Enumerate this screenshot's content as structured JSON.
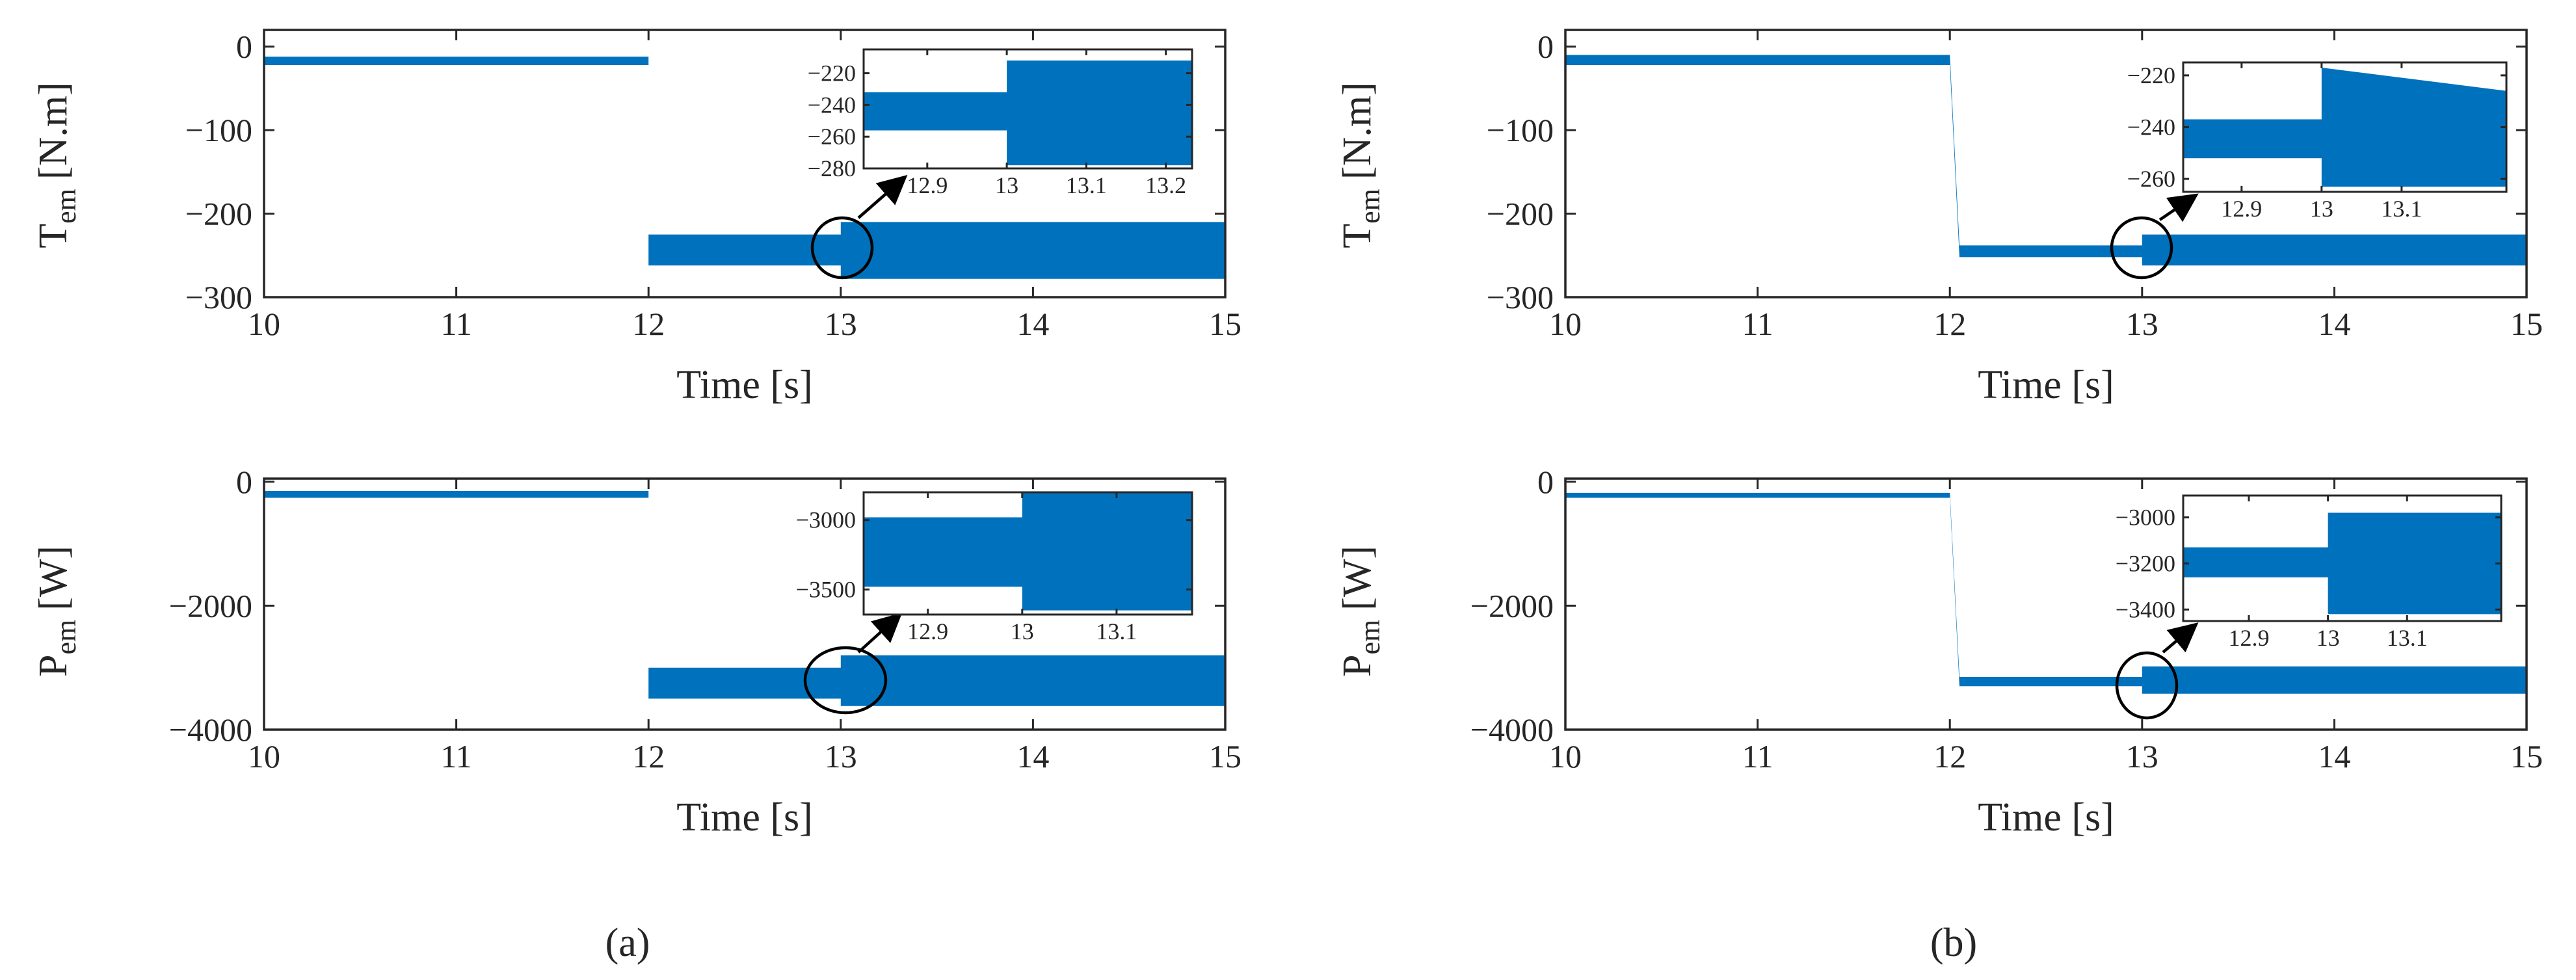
{
  "chart_data": [
    {
      "type": "band",
      "color": "#0072BD",
      "xlabel": "Time [s]",
      "ylabel": {
        "symbol": "T",
        "subscript": "em",
        "unit": "[N.m]"
      },
      "x": [
        10,
        12,
        12,
        13,
        13,
        15
      ],
      "upper": [
        -12,
        -12,
        -225,
        -225,
        -210,
        -210
      ],
      "lower": [
        -22,
        -22,
        -262,
        -262,
        -278,
        -278
      ],
      "xlim": [
        10,
        15
      ],
      "xticks": [
        10,
        11,
        12,
        13,
        14,
        15
      ],
      "ylim": [
        -300,
        20
      ],
      "yticks": [
        {
          "value": -300,
          "label": "−300"
        },
        {
          "value": -200,
          "label": "−200"
        },
        {
          "value": -100,
          "label": "−100"
        },
        0
      ],
      "inset": {
        "x": [
          12.82,
          13,
          13,
          13.233
        ],
        "upper": [
          -232,
          -232,
          -212,
          -212
        ],
        "lower": [
          -256,
          -256,
          -278,
          -278
        ],
        "xlim": [
          12.82,
          13.233
        ],
        "xticks": [
          12.9,
          13,
          13.1,
          13.2
        ],
        "ylim": [
          -280,
          -205
        ],
        "yticks": [
          {
            "value": -280,
            "label": "−280"
          },
          {
            "value": -260,
            "label": "−260"
          },
          {
            "value": -240,
            "label": "−240"
          },
          {
            "value": -220,
            "label": "−220"
          }
        ]
      }
    },
    {
      "type": "band",
      "color": "#0072BD",
      "xlabel": "Time [s]",
      "ylabel": {
        "symbol": "P",
        "subscript": "em",
        "unit": "[W]"
      },
      "x": [
        10,
        12,
        12,
        13,
        13,
        15
      ],
      "upper": [
        -150,
        -150,
        -3000,
        -3000,
        -2800,
        -2800
      ],
      "lower": [
        -260,
        -260,
        -3500,
        -3500,
        -3620,
        -3620
      ],
      "xlim": [
        10,
        15
      ],
      "xticks": [
        10,
        11,
        12,
        13,
        14,
        15
      ],
      "ylim": [
        -4000,
        50
      ],
      "yticks": [
        {
          "value": -4000,
          "label": "−4000"
        },
        {
          "value": -2000,
          "label": "−2000"
        },
        0
      ],
      "inset": {
        "x": [
          12.832,
          13,
          13,
          13.18
        ],
        "upper": [
          -2980,
          -2980,
          -2800,
          -2800
        ],
        "lower": [
          -3480,
          -3480,
          -3650,
          -3650
        ],
        "xlim": [
          12.832,
          13.18
        ],
        "xticks": [
          12.9,
          13,
          13.1
        ],
        "ylim": [
          -3680,
          -2800
        ],
        "yticks": [
          {
            "value": -3500,
            "label": "−3500"
          },
          {
            "value": -3000,
            "label": "−3000"
          }
        ]
      }
    },
    {
      "type": "band",
      "color": "#0072BD",
      "xlabel": "Time [s]",
      "ylabel": {
        "symbol": "T",
        "subscript": "em",
        "unit": "[N.m]"
      },
      "x": [
        10,
        12,
        12.05,
        13,
        13,
        15
      ],
      "upper": [
        -10,
        -10,
        -238,
        -238,
        -225,
        -225
      ],
      "lower": [
        -22,
        -22,
        -252,
        -252,
        -262,
        -262
      ],
      "xlim": [
        10,
        15
      ],
      "xticks": [
        10,
        11,
        12,
        13,
        14,
        15
      ],
      "ylim": [
        -300,
        20
      ],
      "yticks": [
        {
          "value": -300,
          "label": "−300"
        },
        {
          "value": -200,
          "label": "−200"
        },
        {
          "value": -100,
          "label": "−100"
        },
        0
      ],
      "inset": {
        "x": [
          12.827,
          13,
          13,
          13.231
        ],
        "upper": [
          -237,
          -237,
          -217,
          -226
        ],
        "lower": [
          -252,
          -252,
          -263,
          -263
        ],
        "xlim": [
          12.827,
          13.231
        ],
        "xticks": [
          12.9,
          13,
          13.1
        ],
        "ylim": [
          -265,
          -215
        ],
        "yticks": [
          {
            "value": -260,
            "label": "−260"
          },
          {
            "value": -240,
            "label": "−240"
          },
          {
            "value": -220,
            "label": "−220"
          }
        ]
      }
    },
    {
      "type": "band",
      "color": "#0072BD",
      "xlabel": "Time [s]",
      "ylabel": {
        "symbol": "P",
        "subscript": "em",
        "unit": "[W]"
      },
      "x": [
        10,
        12,
        12.05,
        13,
        13,
        15
      ],
      "upper": [
        -180,
        -180,
        -3150,
        -3150,
        -2980,
        -2980
      ],
      "lower": [
        -260,
        -260,
        -3300,
        -3300,
        -3420,
        -3420
      ],
      "xlim": [
        10,
        15
      ],
      "xticks": [
        10,
        11,
        12,
        13,
        14,
        15
      ],
      "ylim": [
        -4000,
        50
      ],
      "yticks": [
        {
          "value": -4000,
          "label": "−4000"
        },
        {
          "value": -2000,
          "label": "−2000"
        },
        0
      ],
      "inset": {
        "x": [
          12.817,
          13,
          13,
          13.219
        ],
        "upper": [
          -3130,
          -3130,
          -2980,
          -2980
        ],
        "lower": [
          -3260,
          -3260,
          -3420,
          -3420
        ],
        "xlim": [
          12.817,
          13.219
        ],
        "xticks": [
          12.9,
          13,
          13.1
        ],
        "ylim": [
          -3450,
          -2905
        ],
        "yticks": [
          {
            "value": -3400,
            "label": "−3400"
          },
          {
            "value": -3200,
            "label": "−3200"
          },
          {
            "value": -3000,
            "label": "−3000"
          }
        ]
      }
    }
  ],
  "captions": [
    "(a)",
    "(b)"
  ]
}
